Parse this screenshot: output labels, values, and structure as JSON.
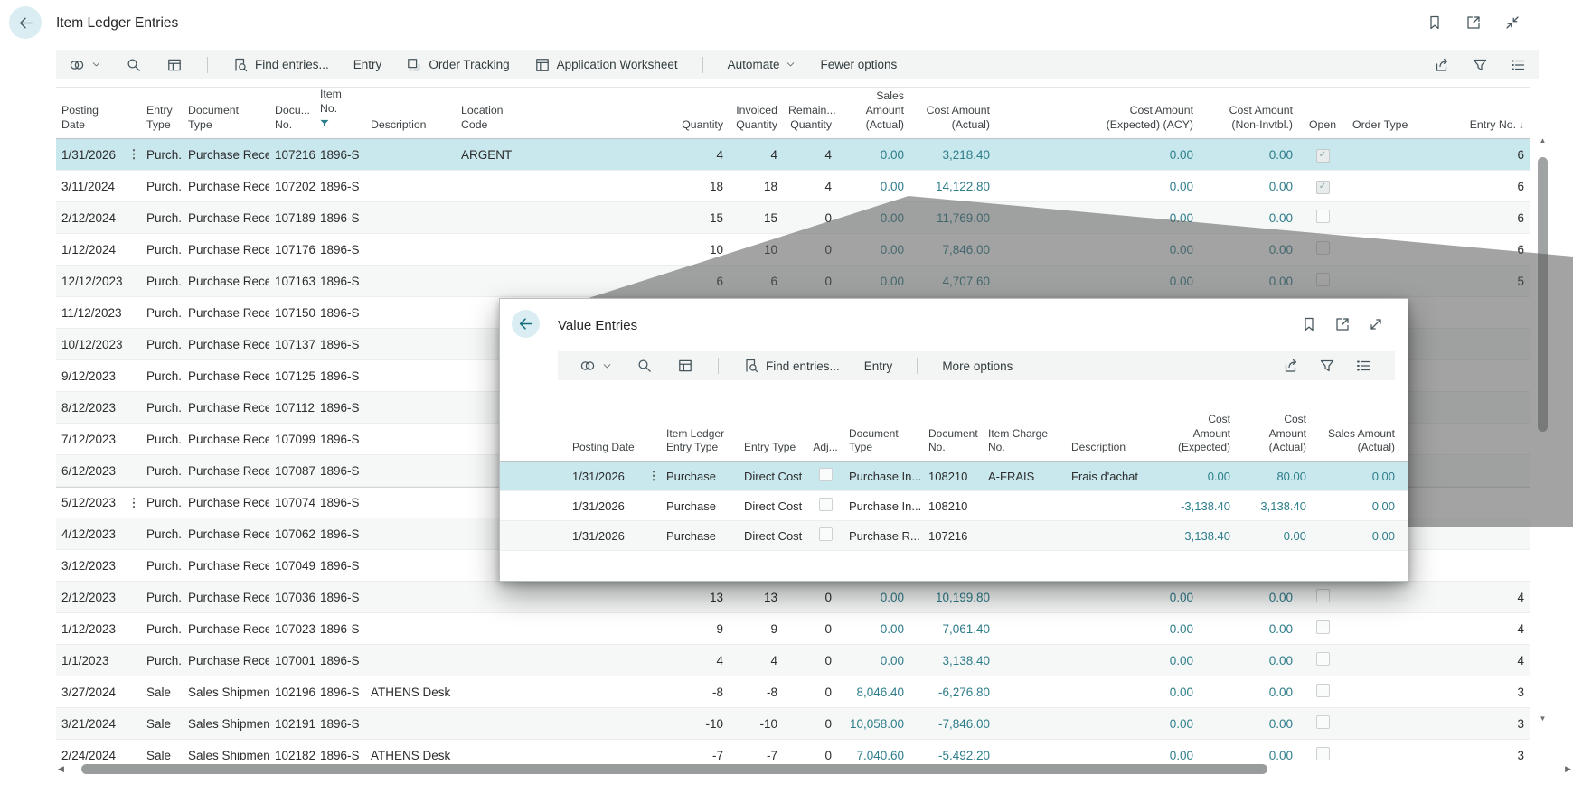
{
  "colors": {
    "accent": "#2b7c8a",
    "selected_row": "#c8e8ed",
    "amount_link": "#2e7d8a",
    "overlay_gray": "rgba(88,88,88,0.55)",
    "back_circle": "#d9edf2",
    "toolbar_bg": "#f3f5f5"
  },
  "main_window": {
    "title": "Item Ledger Entries",
    "nav_icon": "back-arrow-icon",
    "window_icons": [
      "bookmark-icon",
      "open-in-new-window-icon",
      "minimize-icon"
    ],
    "toolbar": {
      "icons": [
        "related-menu-icon",
        "chevron-down-icon",
        "search-icon",
        "analyze-icon",
        "find-entries-icon",
        "order-tracking-icon",
        "application-worksheet-icon",
        "share-icon",
        "filter-icon",
        "view-options-icon"
      ],
      "find_entries": "Find entries...",
      "entry": "Entry",
      "order_tracking": "Order Tracking",
      "application_worksheet": "Application Worksheet",
      "automate": "Automate",
      "fewer_options": "Fewer options"
    },
    "table": {
      "columns": {
        "posting_date": {
          "lines": [
            "Posting Date"
          ]
        },
        "entry_type": {
          "lines": [
            "Entry",
            "Type"
          ]
        },
        "document_type": {
          "lines": [
            "Document Type"
          ]
        },
        "document_no": {
          "lines": [
            "Docu...",
            "No."
          ]
        },
        "item_no": {
          "lines": [
            "Item No."
          ],
          "filter": true
        },
        "description": {
          "lines": [
            "Description"
          ]
        },
        "location_code": {
          "lines": [
            "Location Code"
          ]
        },
        "quantity": {
          "lines": [
            "Quantity"
          ]
        },
        "invoiced_quantity": {
          "lines": [
            "Invoiced",
            "Quantity"
          ]
        },
        "remaining_quantity": {
          "lines": [
            "Remain...",
            "Quantity"
          ]
        },
        "sales_amount_actual": {
          "lines": [
            "Sales Amount",
            "(Actual)"
          ]
        },
        "cost_amount_actual": {
          "lines": [
            "Cost Amount",
            "(Actual)"
          ]
        },
        "cost_amount_expected_acy": {
          "lines": [
            "Cost Amount",
            "(Expected) (ACY)"
          ]
        },
        "cost_amount_non_invtbl": {
          "lines": [
            "Cost Amount",
            "(Non-Invtbl.)"
          ]
        },
        "open": {
          "lines": [
            "Open"
          ]
        },
        "order_type": {
          "lines": [
            "Order Type"
          ]
        },
        "entry_no": {
          "lines": [
            "Entry No."
          ],
          "sort": "desc"
        }
      },
      "rows": [
        {
          "posting_date": "1/31/2026",
          "entry_type": "Purch...",
          "document_type": "Purchase Receipt",
          "document_no": "107216",
          "item_no": "1896-S",
          "location_code": "ARGENT",
          "quantity": "4",
          "invoiced_quantity": "4",
          "remaining_quantity": "4",
          "sales_amount_actual": "0.00",
          "cost_amount_actual": "3,218.40",
          "cost_amount_expected_acy": "0.00",
          "cost_amount_non_invtbl": "0.00",
          "open": "checked",
          "entry_no": "6",
          "_state": "selected",
          "_menu": true,
          "_links": {
            "item_no": "dashed",
            "location_code": "dashed"
          }
        },
        {
          "posting_date": "3/11/2024",
          "entry_type": "Purch...",
          "document_type": "Purchase Receipt",
          "document_no": "107202",
          "item_no": "1896-S",
          "quantity": "18",
          "invoiced_quantity": "18",
          "remaining_quantity": "4",
          "sales_amount_actual": "0.00",
          "cost_amount_actual": "14,122.80",
          "cost_amount_expected_acy": "0.00",
          "cost_amount_non_invtbl": "0.00",
          "open": "checked",
          "entry_no": "6"
        },
        {
          "posting_date": "2/12/2024",
          "entry_type": "Purch...",
          "document_type": "Purchase Receipt",
          "document_no": "107189",
          "item_no": "1896-S",
          "quantity": "15",
          "invoiced_quantity": "15",
          "remaining_quantity": "0",
          "sales_amount_actual": "0.00",
          "cost_amount_actual": "11,769.00",
          "cost_amount_expected_acy": "0.00",
          "cost_amount_non_invtbl": "0.00",
          "open": "unchecked",
          "entry_no": "6"
        },
        {
          "posting_date": "1/12/2024",
          "entry_type": "Purch...",
          "document_type": "Purchase Receipt",
          "document_no": "107176",
          "item_no": "1896-S",
          "quantity": "10",
          "invoiced_quantity": "10",
          "remaining_quantity": "0",
          "sales_amount_actual": "0.00",
          "cost_amount_actual": "7,846.00",
          "cost_amount_expected_acy": "0.00",
          "cost_amount_non_invtbl": "0.00",
          "open": "unchecked",
          "entry_no": "6"
        },
        {
          "posting_date": "12/12/2023",
          "entry_type": "Purch...",
          "document_type": "Purchase Receipt",
          "document_no": "107163",
          "item_no": "1896-S",
          "quantity": "6",
          "invoiced_quantity": "6",
          "remaining_quantity": "0",
          "sales_amount_actual": "0.00",
          "cost_amount_actual": "4,707.60",
          "cost_amount_expected_acy": "0.00",
          "cost_amount_non_invtbl": "0.00",
          "open": "unchecked",
          "entry_no": "5"
        },
        {
          "posting_date": "11/12/2023",
          "entry_type": "Purch...",
          "document_type": "Purchase Receipt",
          "document_no": "107150",
          "item_no": "1896-S"
        },
        {
          "posting_date": "10/12/2023",
          "entry_type": "Purch...",
          "document_type": "Purchase Receipt",
          "document_no": "107137",
          "item_no": "1896-S"
        },
        {
          "pos  ting_date": "",
          "posting_date": "9/12/2023",
          "entry_type": "Purch...",
          "document_type": "Purchase Receipt",
          "document_no": "107125",
          "item_no": "1896-S"
        },
        {
          "posting_date": "8/12/2023",
          "entry_type": "Purch...",
          "document_type": "Purchase Receipt",
          "document_no": "107112",
          "item_no": "1896-S"
        },
        {
          "posting_date": "7/12/2023",
          "entry_type": "Purch...",
          "document_type": "Purchase Receipt",
          "document_no": "107099",
          "item_no": "1896-S"
        },
        {
          "posting_date": "6/12/2023",
          "entry_type": "Purch...",
          "document_type": "Purchase Receipt",
          "document_no": "107087",
          "item_no": "1896-S"
        },
        {
          "posting_date": "5/12/2023",
          "entry_type": "Purch...",
          "document_type": "Purchase Receipt",
          "document_no": "107074",
          "item_no": "1896-S",
          "_state": "hover",
          "_menu": true,
          "_links": {
            "item_no": "dashed"
          }
        },
        {
          "posting_date": "4/12/2023",
          "entry_type": "Purch...",
          "document_type": "Purchase Receipt",
          "document_no": "107062",
          "item_no": "1896-S"
        },
        {
          "posting_date": "3/12/2023",
          "entry_type": "Purch...",
          "document_type": "Purchase Receipt",
          "document_no": "107049",
          "item_no": "1896-S"
        },
        {
          "posting_date": "2/12/2023",
          "entry_type": "Purch...",
          "document_type": "Purchase Receipt",
          "document_no": "107036",
          "item_no": "1896-S",
          "quantity": "13",
          "invoiced_quantity": "13",
          "remaining_quantity": "0",
          "sales_amount_actual": "0.00",
          "cost_amount_actual": "10,199.80",
          "cost_amount_expected_acy": "0.00",
          "cost_amount_non_invtbl": "0.00",
          "open": "unchecked",
          "entry_no": "4"
        },
        {
          "posting_date": "1/12/2023",
          "entry_type": "Purch...",
          "document_type": "Purchase Receipt",
          "document_no": "107023",
          "item_no": "1896-S",
          "quantity": "9",
          "invoiced_quantity": "9",
          "remaining_quantity": "0",
          "sales_amount_actual": "0.00",
          "cost_amount_actual": "7,061.40",
          "cost_amount_expected_acy": "0.00",
          "cost_amount_non_invtbl": "0.00",
          "open": "unchecked",
          "entry_no": "4"
        },
        {
          "posting_date": "1/1/2023",
          "entry_type": "Purch...",
          "document_type": "Purchase Receipt",
          "document_no": "107001",
          "item_no": "1896-S",
          "quantity": "4",
          "invoiced_quantity": "4",
          "remaining_quantity": "0",
          "sales_amount_actual": "0.00",
          "cost_amount_actual": "3,138.40",
          "cost_amount_expected_acy": "0.00",
          "cost_amount_non_invtbl": "0.00",
          "open": "unchecked",
          "entry_no": "4"
        },
        {
          "posting_date": "3/27/2024",
          "entry_type": "Sale",
          "document_type": "Sales Shipment",
          "document_no": "102196",
          "item_no": "1896-S",
          "description": "ATHENS Desk",
          "quantity": "-8",
          "invoiced_quantity": "-8",
          "remaining_quantity": "0",
          "sales_amount_actual": "8,046.40",
          "cost_amount_actual": "-6,276.80",
          "cost_amount_expected_acy": "0.00",
          "cost_amount_non_invtbl": "0.00",
          "open": "unchecked",
          "entry_no": "3"
        },
        {
          "posting_date": "3/21/2024",
          "entry_type": "Sale",
          "document_type": "Sales Shipment",
          "document_no": "102191",
          "item_no": "1896-S",
          "quantity": "-10",
          "invoiced_quantity": "-10",
          "remaining_quantity": "0",
          "sales_amount_actual": "10,058.00",
          "cost_amount_actual": "-7,846.00",
          "cost_amount_expected_acy": "0.00",
          "cost_amount_non_invtbl": "0.00",
          "open": "unchecked",
          "entry_no": "3"
        },
        {
          "posting_date": "2/24/2024",
          "entry_type": "Sale",
          "document_type": "Sales Shipment",
          "document_no": "102182",
          "item_no": "1896-S",
          "description": "ATHENS Desk",
          "quantity": "-7",
          "invoiced_quantity": "-7",
          "remaining_quantity": "0",
          "sales_amount_actual": "7,040.60",
          "cost_amount_actual": "-5,492.20",
          "cost_amount_expected_acy": "0.00",
          "cost_amount_non_invtbl": "0.00",
          "open": "unchecked",
          "entry_no": "3"
        }
      ]
    }
  },
  "popup_window": {
    "title": "Value Entries",
    "nav_icon": "back-arrow-icon",
    "window_icons": [
      "bookmark-icon",
      "open-in-new-window-icon",
      "expand-icon"
    ],
    "toolbar": {
      "icons": [
        "related-menu-icon",
        "chevron-down-icon",
        "search-icon",
        "analyze-icon",
        "find-entries-icon",
        "share-icon",
        "filter-icon",
        "view-options-icon"
      ],
      "find_entries": "Find entries...",
      "entry": "Entry",
      "more_options": "More options"
    },
    "table": {
      "columns": {
        "posting_date": {
          "lines": [
            "Posting Date"
          ]
        },
        "item_ledger_entry_type": {
          "lines": [
            "Item Ledger",
            "Entry Type"
          ]
        },
        "entry_type": {
          "lines": [
            "Entry Type"
          ]
        },
        "adjustment": {
          "lines": [
            "Adj..."
          ]
        },
        "document_type": {
          "lines": [
            "Document",
            "Type"
          ]
        },
        "document_no": {
          "lines": [
            "Document",
            "No."
          ]
        },
        "item_charge_no": {
          "lines": [
            "Item Charge",
            "No."
          ]
        },
        "description": {
          "lines": [
            "Description"
          ]
        },
        "cost_amount_expected": {
          "lines": [
            "Cost",
            "Amount",
            "(Expected)"
          ]
        },
        "cost_amount_actual": {
          "lines": [
            "Cost",
            "Amount",
            "(Actual)"
          ]
        },
        "sales_amount_actual": {
          "lines": [
            "Sales Amount",
            "(Actual)"
          ]
        }
      },
      "rows": [
        {
          "posting_date": "1/31/2026",
          "item_ledger_entry_type": "Purchase",
          "entry_type": "Direct Cost",
          "adjustment": "unchecked",
          "document_type": "Purchase In...",
          "document_no": "108210",
          "item_charge_no": "A-FRAIS",
          "description": "Frais d'achat",
          "cost_amount_expected": "0.00",
          "cost_amount_actual": "80.00",
          "sales_amount_actual": "0.00",
          "_state": "selected",
          "_menu": true,
          "_links": {
            "posting_date": "solid",
            "item_charge_no": "dashed"
          }
        },
        {
          "posting_date": "1/31/2026",
          "item_ledger_entry_type": "Purchase",
          "entry_type": "Direct Cost",
          "adjustment": "unchecked",
          "document_type": "Purchase In...",
          "document_no": "108210",
          "cost_amount_expected": "-3,138.40",
          "cost_amount_actual": "3,138.40",
          "sales_amount_actual": "0.00"
        },
        {
          "posting_date": "1/31/2026",
          "item_ledger_entry_type": "Purchase",
          "entry_type": "Direct Cost",
          "adjustment": "unchecked",
          "document_type": "Purchase R...",
          "document_no": "107216",
          "cost_amount_expected": "3,138.40",
          "cost_amount_actual": "0.00",
          "sales_amount_actual": "0.00"
        }
      ]
    }
  }
}
